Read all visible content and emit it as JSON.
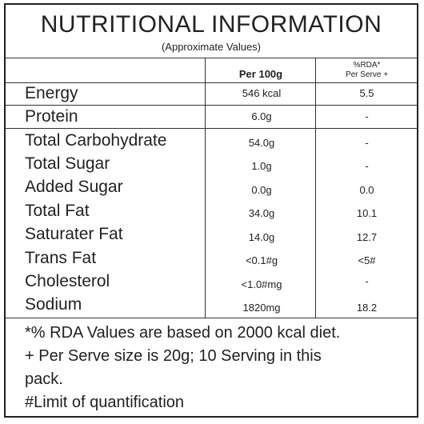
{
  "title": "NUTRITIONAL INFORMATION",
  "subtitle": "(Approximate Values)",
  "header": {
    "per_100g": "Per 100g",
    "rda_line1": "%RDA*",
    "rda_line2": "Per Serve +"
  },
  "rows": [
    {
      "name": "Energy",
      "per_100g": "546 kcal",
      "rda": "5.5"
    },
    {
      "name": "Protein",
      "per_100g": "6.0g",
      "rda": "-"
    },
    {
      "name": "Total Carbohydrate",
      "per_100g": "54.0g",
      "rda": "-"
    },
    {
      "name": "Total Sugar",
      "per_100g": "1.0g",
      "rda": "-"
    },
    {
      "name": "Added Sugar",
      "per_100g": "0.0g",
      "rda": "0.0"
    },
    {
      "name": "Total Fat",
      "per_100g": "34.0g",
      "rda": "10.1"
    },
    {
      "name": "Saturater Fat",
      "per_100g": "14.0g",
      "rda": "12.7"
    },
    {
      "name": "Trans Fat",
      "per_100g": "<0.1#g",
      "rda": "<5#"
    },
    {
      "name": "Cholesterol",
      "per_100g": "<1.0#mg",
      "rda": "-"
    },
    {
      "name": "Sodium",
      "per_100g": "1820mg",
      "rda": "18.2"
    }
  ],
  "footer": {
    "line1": "*% RDA Values are based on 2000 kcal diet.",
    "line2": "+ Per Serve size is 20g; 10 Serving in this",
    "line3": "pack.",
    "line4": "#Limit of quantification"
  }
}
